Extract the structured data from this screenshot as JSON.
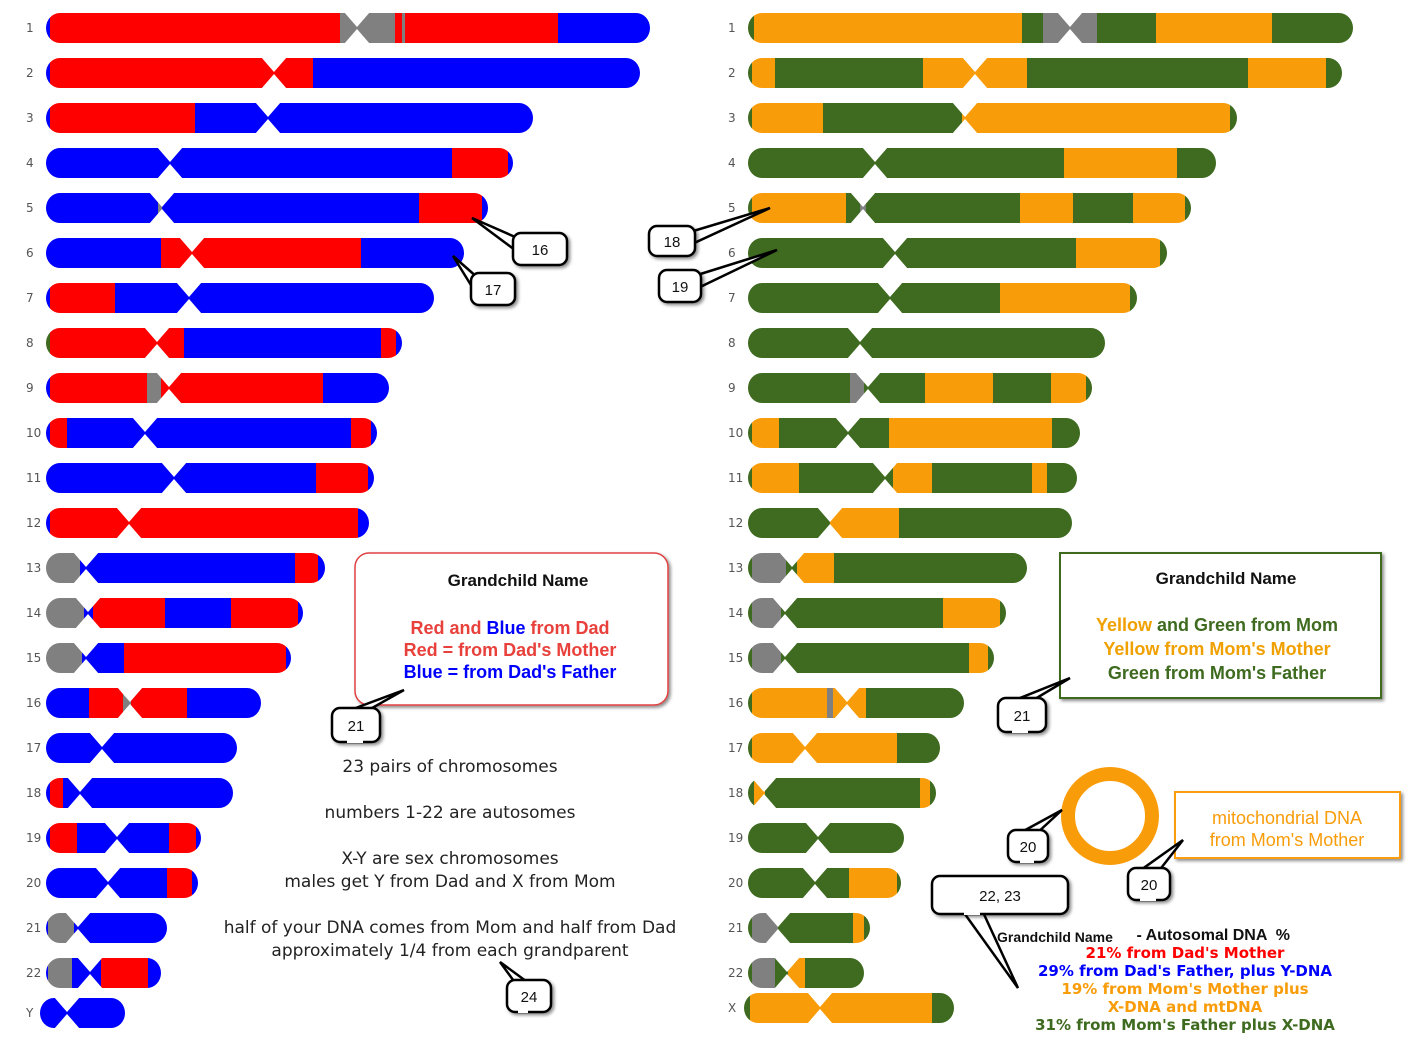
{
  "colors": {
    "dads_mother": "#ff0000",
    "dads_father": "#0000ff",
    "moms_mother": "#f99c0a",
    "moms_father": "#3e6b1f",
    "unknown": "#808080",
    "left_box_border": "#e04040",
    "right_box_border": "#3e6b1f"
  },
  "left_labels": [
    "1",
    "2",
    "3",
    "4",
    "5",
    "6",
    "7",
    "8",
    "9",
    "10",
    "11",
    "12",
    "13",
    "14",
    "15",
    "16",
    "17",
    "18",
    "19",
    "20",
    "21",
    "22",
    "Y"
  ],
  "right_labels": [
    "1",
    "2",
    "3",
    "4",
    "5",
    "6",
    "7",
    "8",
    "9",
    "10",
    "11",
    "12",
    "13",
    "14",
    "15",
    "16",
    "17",
    "18",
    "19",
    "20",
    "21",
    "22",
    "X"
  ],
  "callouts": {
    "c16": "16",
    "c17": "17",
    "c18": "18",
    "c19": "19",
    "c21a": "21",
    "c21b": "21",
    "c20a": "20",
    "c20b": "20",
    "c22": "22, 23",
    "c24": "24"
  },
  "dad_legend": {
    "title": "Grandchild Name",
    "line1_red": "Red",
    "line1_and": " and ",
    "line1_blue": "Blue",
    "line1_rest": " from Dad",
    "line2": "Red = from Dad's Mother",
    "line3": "Blue = from Dad's Father"
  },
  "mom_legend": {
    "title": "Grandchild Name",
    "line1_yellow": "Yellow",
    "line1_rest": " and Green from Mom",
    "line2": "Yellow from Mom's Mother",
    "line3": "Green from Mom's Father"
  },
  "notes": {
    "n1": "23 pairs of chromosomes",
    "n2": "numbers 1-22 are autosomes",
    "n3": "X-Y are sex chromosomes",
    "n4": "males get Y from Dad and X from Mom",
    "n5": "half of your DNA comes from Mom and half from Dad",
    "n6": "approximately 1/4 from each grandparent"
  },
  "mito": {
    "line1": "mitochondrial DNA",
    "line2": "from Mom's Mother"
  },
  "summary": {
    "name": "Grandchild Name",
    "heading": " - Autosomal DNA  %",
    "l1": "21% from Dad's Mother",
    "l2": "29% from Dad's Father, plus Y-DNA",
    "l3": "19% from Mom's Mother plus",
    "l4": "X-DNA and mtDNA",
    "l5": "31% from Mom's Father plus X-DNA"
  }
}
